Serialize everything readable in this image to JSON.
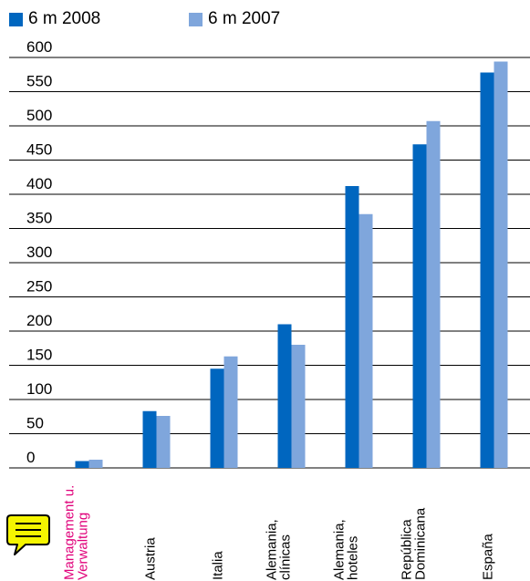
{
  "chart_data": {
    "type": "bar",
    "title": "",
    "xlabel": "",
    "ylabel": "",
    "ylim": [
      0,
      600
    ],
    "yticks": [
      0,
      50,
      100,
      150,
      200,
      250,
      300,
      350,
      400,
      450,
      500,
      550,
      600
    ],
    "grid": true,
    "legend_position": "top-left",
    "categories": [
      [
        "Management u.",
        "Verwaltung"
      ],
      [
        "Austria"
      ],
      [
        "Italia"
      ],
      [
        "Alemania,",
        "clínicas"
      ],
      [
        "Alemania,",
        "hoteles"
      ],
      [
        "República",
        "Dominicana"
      ],
      [
        "España"
      ]
    ],
    "series": [
      {
        "name": "6 m 2008",
        "color": "#0066bf",
        "values": [
          10,
          83,
          145,
          210,
          412,
          473,
          578
        ]
      },
      {
        "name": "6 m 2007",
        "color": "#7fa6dc",
        "values": [
          12,
          76,
          163,
          180,
          371,
          507,
          594
        ]
      }
    ],
    "highlight_category_color": "#e0007a",
    "text_color": "#000000",
    "grid_color": "#000000"
  },
  "annotation": {
    "icon": "comment-icon",
    "fill": "#f5f500",
    "stroke": "#000000"
  }
}
